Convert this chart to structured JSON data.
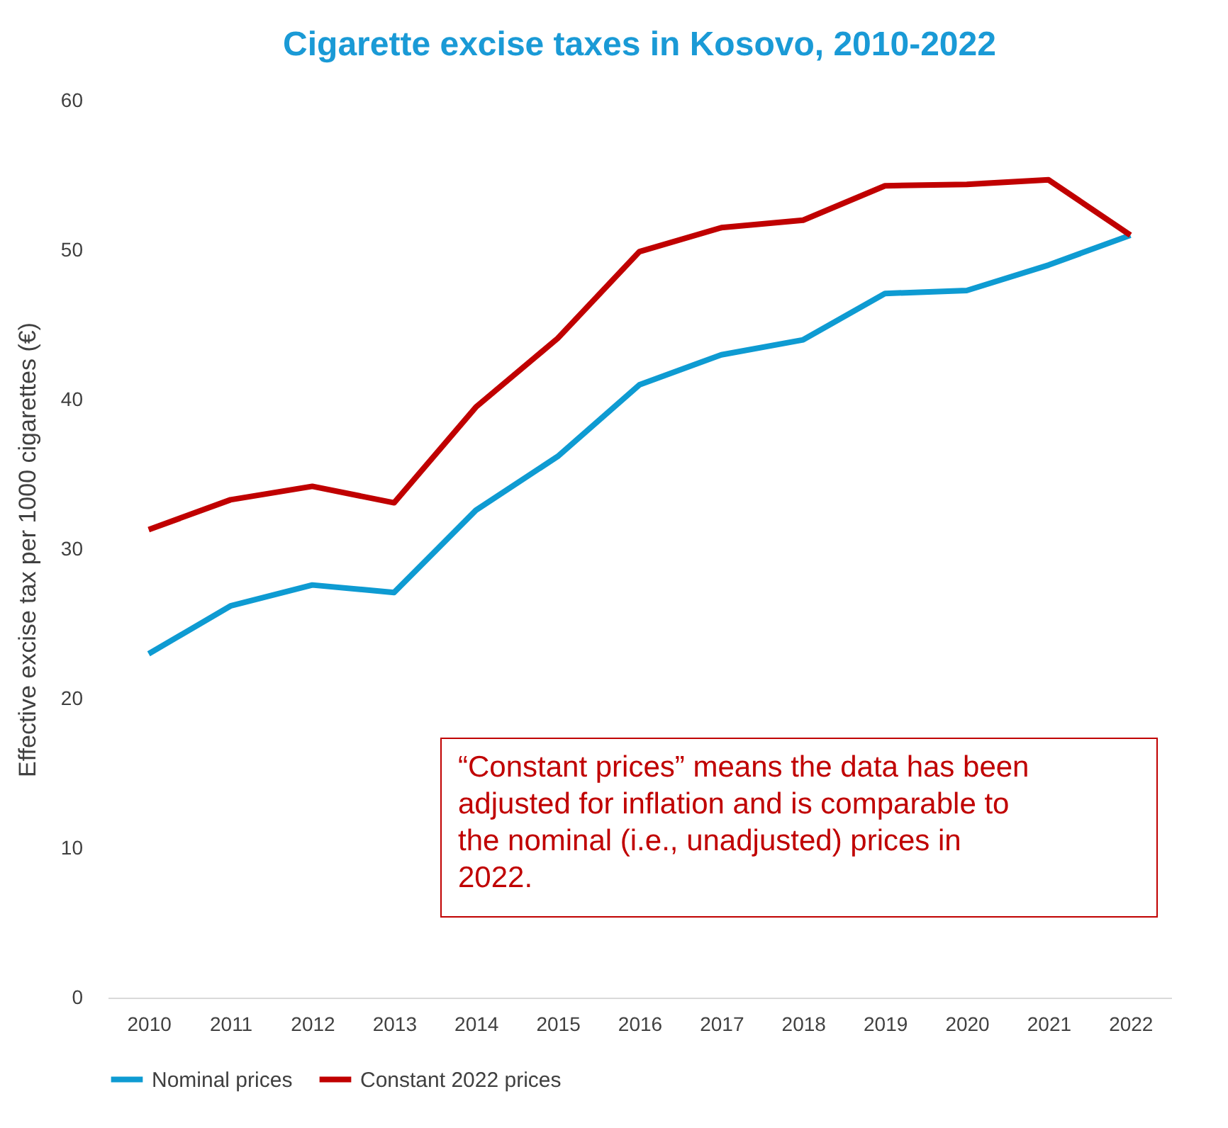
{
  "chart_data": {
    "type": "line",
    "title": "Cigarette excise taxes in Kosovo, 2010-2022",
    "ylabel": "Effective excise tax per 1000 cigarettes (€)",
    "categories": [
      "2010",
      "2011",
      "2012",
      "2013",
      "2014",
      "2015",
      "2016",
      "2017",
      "2018",
      "2019",
      "2020",
      "2021",
      "2022"
    ],
    "series": [
      {
        "name": "Nominal prices",
        "color": "#0e9bd2",
        "values": [
          23.0,
          26.2,
          27.6,
          27.1,
          32.6,
          36.2,
          41.0,
          43.0,
          44.0,
          47.1,
          47.3,
          49.0,
          51.0
        ]
      },
      {
        "name": "Constant 2022 prices",
        "color": "#c00000",
        "values": [
          31.3,
          33.3,
          34.2,
          33.1,
          39.5,
          44.1,
          49.9,
          51.5,
          52.0,
          54.3,
          54.4,
          54.7,
          51.0
        ]
      }
    ],
    "ylim": [
      0,
      60
    ],
    "yticks": [
      0,
      10,
      20,
      30,
      40,
      50,
      60
    ],
    "grid": false,
    "legend": "bottom",
    "marker": "none",
    "line_style": "solid",
    "annotations": [
      "“Constant prices” means the data has been adjusted for inflation and is comparable to the nominal (i.e., unadjusted) prices in 2022."
    ]
  }
}
